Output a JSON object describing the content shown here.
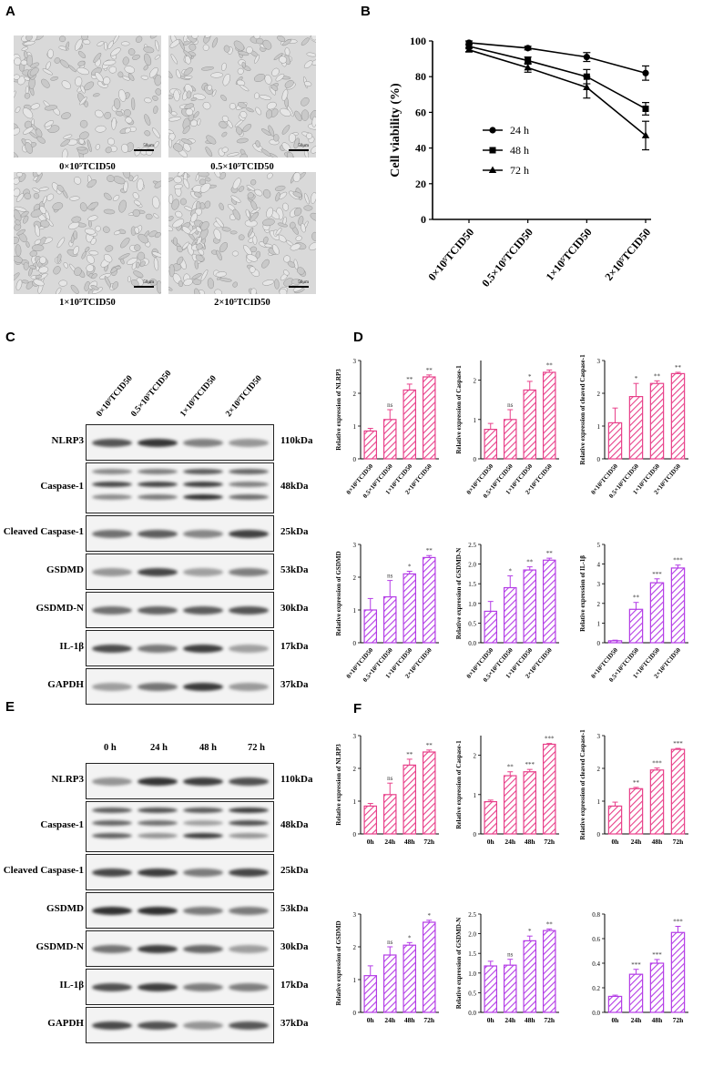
{
  "panel_letters": {
    "a": "A",
    "b": "B",
    "c": "C",
    "d": "D",
    "e": "E",
    "f": "F"
  },
  "panel_a": {
    "captions": [
      "0×10⁵TCID50",
      "0.5×10⁵TCID50",
      "1×10⁵TCID50",
      "2×10⁵TCID50"
    ],
    "scalebar_label": "50μm"
  },
  "panel_c": {
    "lane_labels": [
      "0×10⁵TCID50",
      "0.5×10⁵TCID50",
      "1×10⁵TCID50",
      "2×10⁵TCID50"
    ],
    "rows": [
      {
        "protein": "NLRP3",
        "kda": "110kDa"
      },
      {
        "protein": "Caspase-1",
        "kda": "48kDa"
      },
      {
        "protein": "Cleaved Caspase-1",
        "kda": "25kDa"
      },
      {
        "protein": "GSDMD",
        "kda": "53kDa"
      },
      {
        "protein": "GSDMD-N",
        "kda": "30kDa"
      },
      {
        "protein": "IL-1β",
        "kda": "17kDa"
      },
      {
        "protein": "GAPDH",
        "kda": "37kDa"
      }
    ]
  },
  "panel_e": {
    "lane_labels": [
      "0 h",
      "24 h",
      "48 h",
      "72 h"
    ],
    "rows": [
      {
        "protein": "NLRP3",
        "kda": "110kDa"
      },
      {
        "protein": "Caspase-1",
        "kda": "48kDa"
      },
      {
        "protein": "Cleaved Caspase-1",
        "kda": "25kDa"
      },
      {
        "protein": "GSDMD",
        "kda": "53kDa"
      },
      {
        "protein": "GSDMD-N",
        "kda": "30kDa"
      },
      {
        "protein": "IL-1β",
        "kda": "17kDa"
      },
      {
        "protein": "GAPDH",
        "kda": "37kDa"
      }
    ]
  },
  "colors": {
    "pink": "#e8408a",
    "purple": "#b43ce6"
  },
  "chart_data": [
    {
      "id": "B",
      "type": "line",
      "ylabel": "Cell viability (%)",
      "categories": [
        "0×10⁵TCID50",
        "0.5×10⁵TCID50",
        "1×10⁵TCID50",
        "2×10⁵TCID50"
      ],
      "ylim": [
        0,
        100
      ],
      "yticks": [
        0,
        20,
        40,
        60,
        80,
        100
      ],
      "legend_placement": "center-left",
      "series": [
        {
          "name": "24 h",
          "marker": "circle",
          "values": [
            99,
            96,
            91,
            82
          ],
          "errors": [
            1,
            1,
            2.5,
            4
          ]
        },
        {
          "name": "48 h",
          "marker": "square",
          "values": [
            97,
            89,
            80,
            62
          ],
          "errors": [
            1,
            2,
            4,
            3.5
          ]
        },
        {
          "name": "72 h",
          "marker": "triangle",
          "values": [
            95,
            85,
            74,
            47
          ],
          "errors": [
            1,
            2.5,
            6,
            8
          ]
        }
      ]
    },
    {
      "id": "D1",
      "type": "bar",
      "ylabel": "Relative expression of NLRP3",
      "color": "#e8408a",
      "categories": [
        "0×10⁵TCID50",
        "0.5×10⁵TCID50",
        "1×10⁵TCID50",
        "2×10⁵TCID50"
      ],
      "values": [
        0.85,
        1.2,
        2.1,
        2.5
      ],
      "errors": [
        0.08,
        0.3,
        0.18,
        0.06
      ],
      "sig": [
        "",
        "ns",
        "**",
        "**"
      ],
      "ylim": [
        0,
        3
      ]
    },
    {
      "id": "D2",
      "type": "bar",
      "ylabel": "Relative expression of Caspase-1",
      "color": "#e8408a",
      "categories": [
        "0×10⁵TCID50",
        "0.5×10⁵TCID50",
        "1×10⁵TCID50",
        "2×10⁵TCID50"
      ],
      "values": [
        0.75,
        1.0,
        1.75,
        2.2
      ],
      "errors": [
        0.15,
        0.25,
        0.22,
        0.06
      ],
      "sig": [
        "",
        "ns",
        "*",
        "**"
      ],
      "ylim": [
        0,
        2.5
      ]
    },
    {
      "id": "D3",
      "type": "bar",
      "ylabel": "Relative expression of cleaved Caspase-1",
      "color": "#e8408a",
      "categories": [
        "0×10⁵TCID50",
        "0.5×10⁵TCID50",
        "1×10⁵TCID50",
        "2×10⁵TCID50"
      ],
      "values": [
        1.1,
        1.9,
        2.3,
        2.6
      ],
      "errors": [
        0.45,
        0.4,
        0.08,
        0.04
      ],
      "sig": [
        "",
        "*",
        "**",
        "**"
      ],
      "ylim": [
        0,
        3
      ]
    },
    {
      "id": "D4",
      "type": "bar",
      "ylabel": "Relative expression of GSDMD",
      "color": "#b43ce6",
      "categories": [
        "0×10⁵TCID50",
        "0.5×10⁵TCID50",
        "1×10⁵TCID50",
        "2×10⁵TCID50"
      ],
      "values": [
        1.0,
        1.4,
        2.1,
        2.6
      ],
      "errors": [
        0.35,
        0.5,
        0.08,
        0.06
      ],
      "sig": [
        "",
        "ns",
        "*",
        "**"
      ],
      "ylim": [
        0,
        3
      ]
    },
    {
      "id": "D5",
      "type": "bar",
      "ylabel": "Relative expression of GSDMD-N",
      "color": "#b43ce6",
      "categories": [
        "0×10⁵TCID50",
        "0.5×10⁵TCID50",
        "1×10⁵TCID50",
        "2×10⁵TCID50"
      ],
      "values": [
        0.8,
        1.4,
        1.85,
        2.1
      ],
      "errors": [
        0.25,
        0.3,
        0.08,
        0.05
      ],
      "sig": [
        "",
        "*",
        "**",
        "**"
      ],
      "ylim": [
        0,
        2.5
      ],
      "yticks": [
        0.0,
        0.5,
        1.0,
        1.5,
        2.0,
        2.5
      ]
    },
    {
      "id": "D6",
      "type": "bar",
      "ylabel": "Relative expression of IL-1β",
      "color": "#b43ce6",
      "categories": [
        "0×10⁵TCID50",
        "0.5×10⁵TCID50",
        "1×10⁵TCID50",
        "2×10⁵TCID50"
      ],
      "values": [
        0.1,
        1.7,
        3.05,
        3.8
      ],
      "errors": [
        0.03,
        0.35,
        0.2,
        0.15
      ],
      "sig": [
        "",
        "**",
        "***",
        "***"
      ],
      "ylim": [
        0,
        5
      ]
    },
    {
      "id": "F1",
      "type": "bar",
      "ylabel": "Relative expression of NLRP3",
      "color": "#e8408a",
      "categories": [
        "0h",
        "24h",
        "48h",
        "72h"
      ],
      "values": [
        0.85,
        1.2,
        2.1,
        2.5
      ],
      "errors": [
        0.08,
        0.35,
        0.18,
        0.06
      ],
      "sig": [
        "",
        "ns",
        "**",
        "**"
      ],
      "ylim": [
        0,
        3
      ]
    },
    {
      "id": "F2",
      "type": "bar",
      "ylabel": "Relative expression of Caspase-1",
      "color": "#e8408a",
      "categories": [
        "0h",
        "24h",
        "48h",
        "72h"
      ],
      "values": [
        0.82,
        1.48,
        1.58,
        2.28
      ],
      "errors": [
        0.04,
        0.1,
        0.06,
        0.02
      ],
      "sig": [
        "",
        "**",
        "***",
        "***"
      ],
      "ylim": [
        0,
        2.5
      ]
    },
    {
      "id": "F3",
      "type": "bar",
      "ylabel": "Relative expression of cleaved Caspase-1",
      "color": "#e8408a",
      "categories": [
        "0h",
        "24h",
        "48h",
        "72h"
      ],
      "values": [
        0.85,
        1.38,
        1.95,
        2.58
      ],
      "errors": [
        0.12,
        0.04,
        0.06,
        0.03
      ],
      "sig": [
        "",
        "**",
        "***",
        "***"
      ],
      "ylim": [
        0,
        3
      ]
    },
    {
      "id": "F4",
      "type": "bar",
      "ylabel": "Relative expression of GSDMD",
      "color": "#b43ce6",
      "categories": [
        "0h",
        "24h",
        "48h",
        "72h"
      ],
      "values": [
        1.12,
        1.75,
        2.05,
        2.75
      ],
      "errors": [
        0.3,
        0.25,
        0.08,
        0.06
      ],
      "sig": [
        "",
        "ns",
        "*",
        "*"
      ],
      "ylim": [
        0,
        3
      ]
    },
    {
      "id": "F5",
      "type": "bar",
      "ylabel": "Relative expression of GSDMD-N",
      "color": "#b43ce6",
      "categories": [
        "0h",
        "24h",
        "48h",
        "72h"
      ],
      "values": [
        1.18,
        1.2,
        1.82,
        2.08
      ],
      "errors": [
        0.12,
        0.15,
        0.12,
        0.04
      ],
      "sig": [
        "",
        "ns",
        "*",
        "**"
      ],
      "ylim": [
        0,
        2.5
      ],
      "yticks": [
        0.0,
        0.5,
        1.0,
        1.5,
        2.0,
        2.5
      ]
    },
    {
      "id": "F6",
      "type": "bar",
      "ylabel": "",
      "color": "#b43ce6",
      "categories": [
        "0h",
        "24h",
        "48h",
        "72h"
      ],
      "values": [
        0.13,
        0.31,
        0.4,
        0.65
      ],
      "errors": [
        0.01,
        0.04,
        0.03,
        0.05
      ],
      "sig": [
        "",
        "***",
        "***",
        "***"
      ],
      "ylim": [
        0,
        0.8
      ],
      "yticks": [
        0.0,
        0.2,
        0.4,
        0.6,
        0.8
      ]
    }
  ]
}
